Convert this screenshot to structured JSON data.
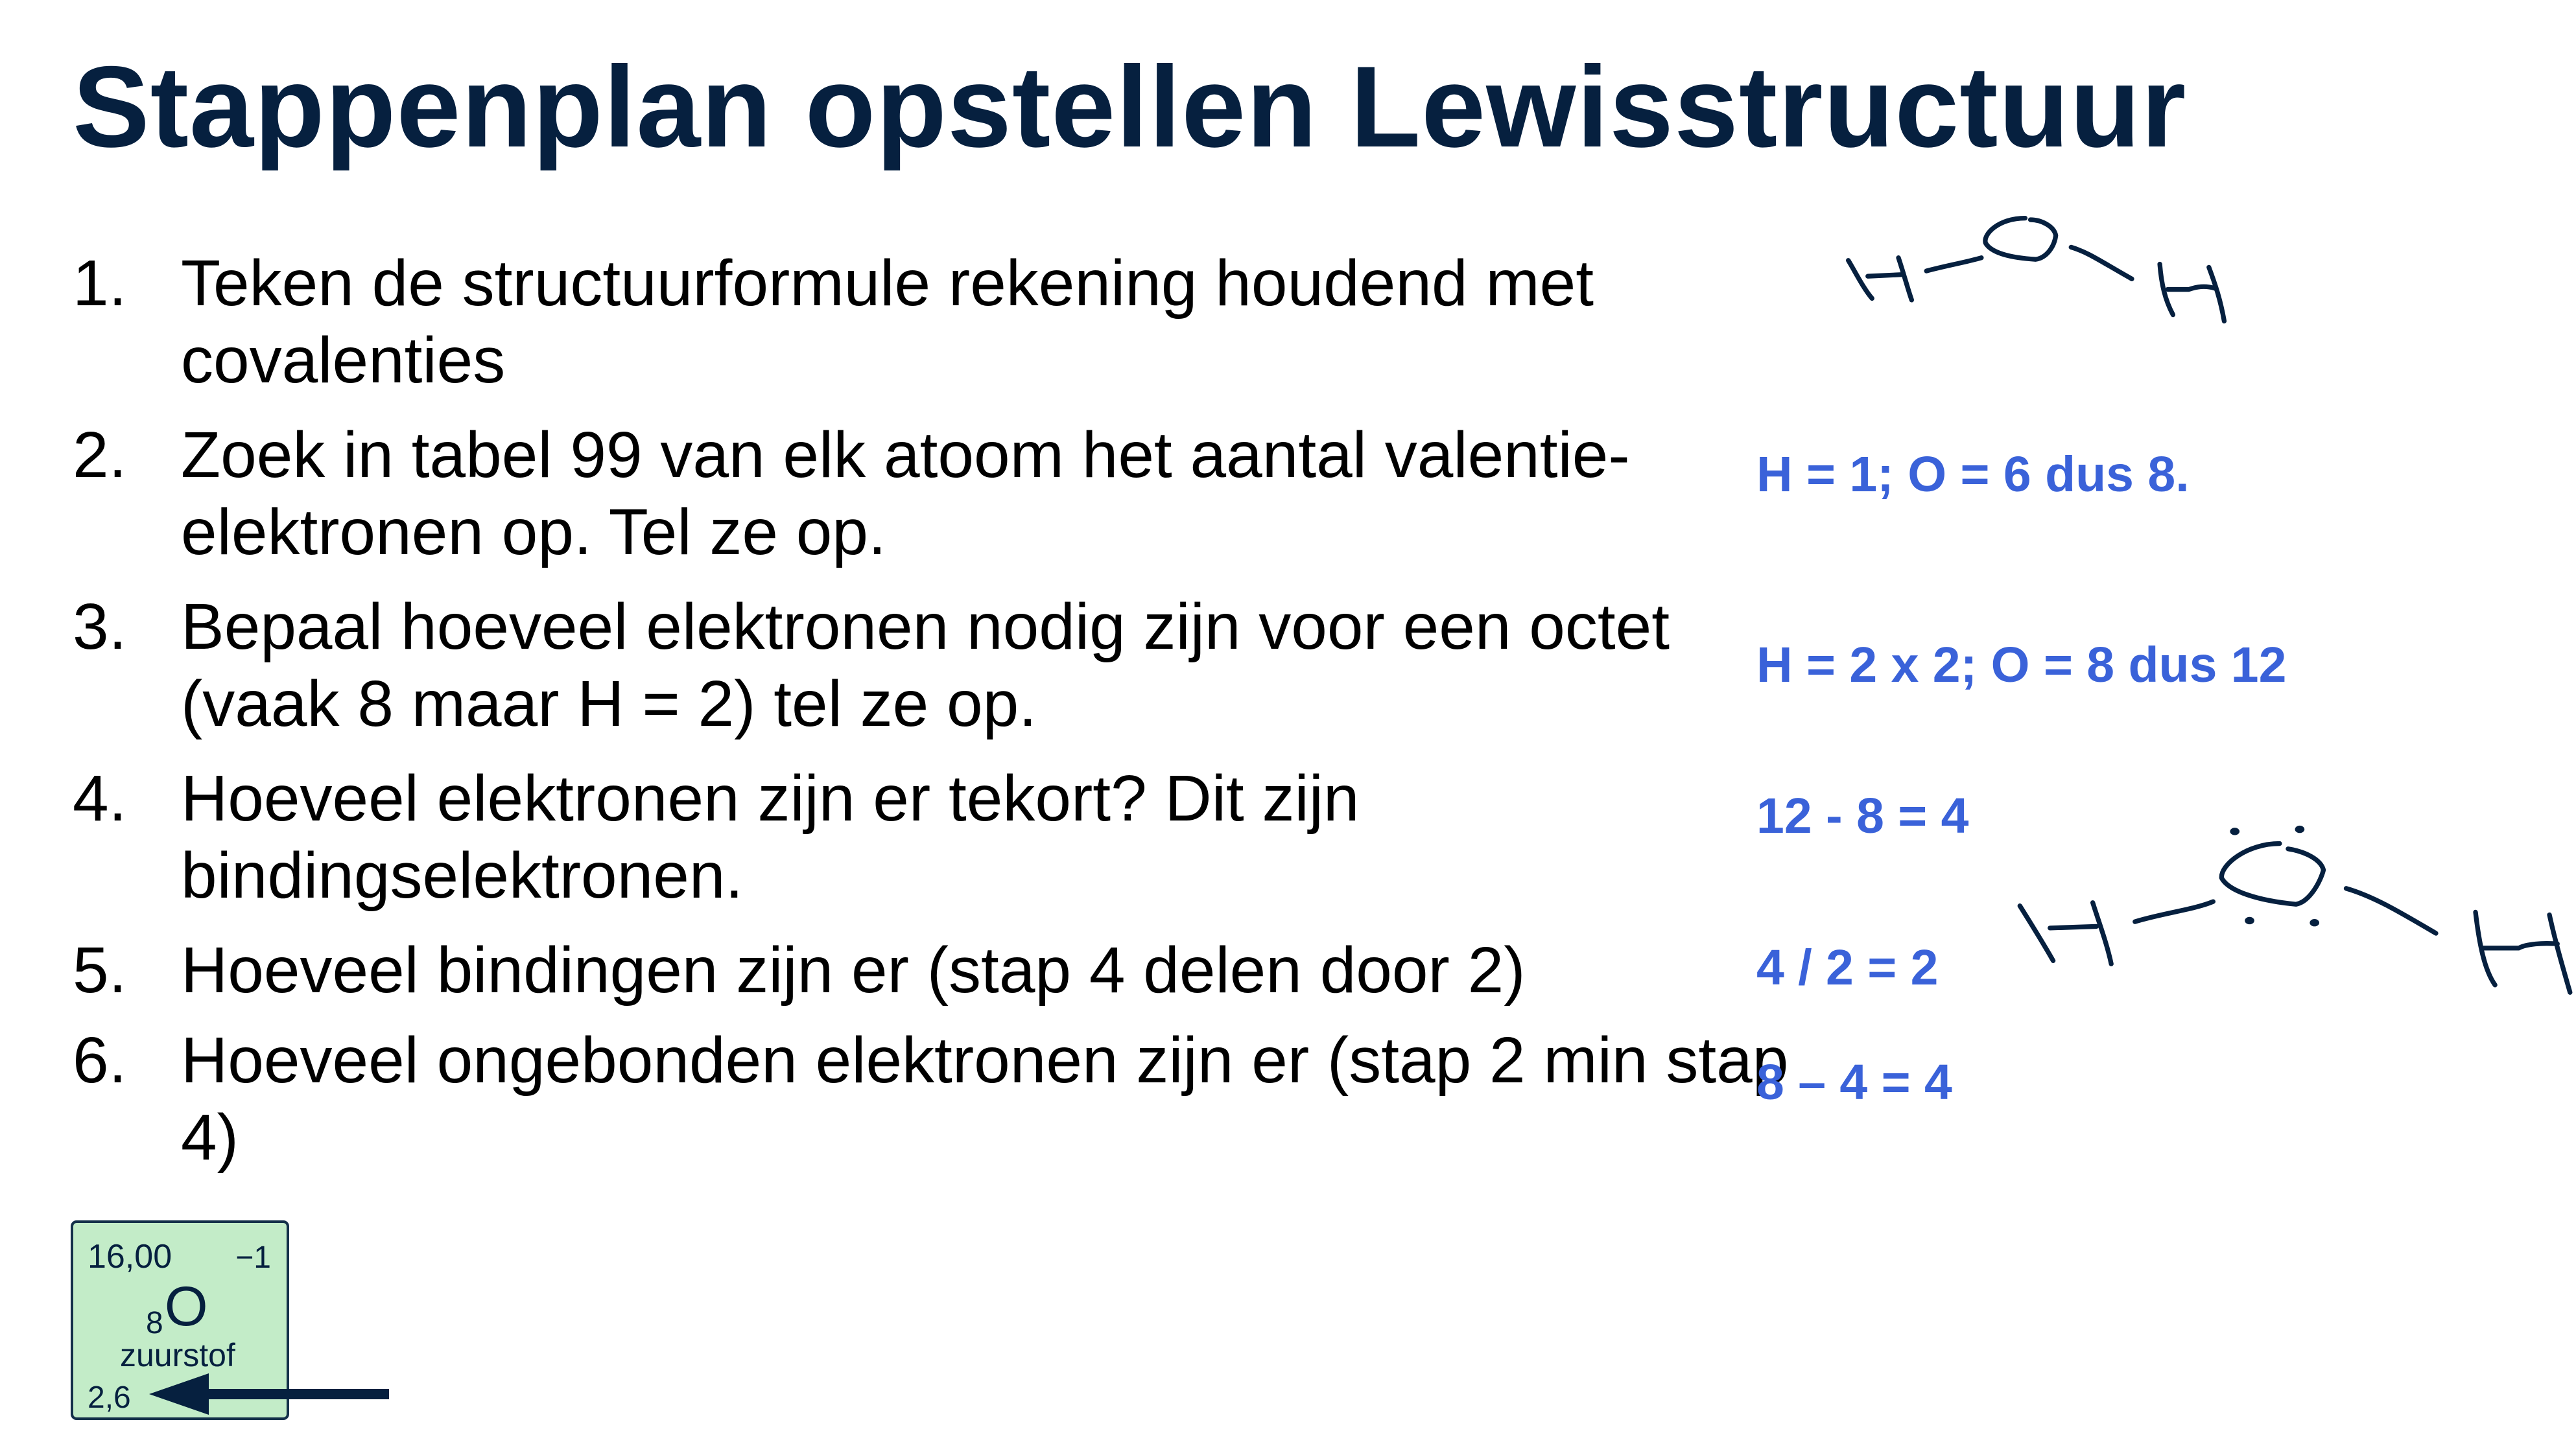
{
  "title": "Stappenplan opstellen Lewisstructuur",
  "steps": [
    {
      "number": "1.",
      "text": "Teken de structuurformule rekening houdend met covalenties"
    },
    {
      "number": "2.",
      "text": "Zoek in tabel 99 van elk atoom het aantal valentie-elektronen op. Tel ze op."
    },
    {
      "number": "3.",
      "text": "Bepaal hoeveel elektronen nodig zijn voor een octet (vaak 8 maar H = 2) tel ze op."
    },
    {
      "number": "4.",
      "text": "Hoeveel elektronen zijn er tekort? Dit zijn bindingselektronen."
    },
    {
      "number": "5.",
      "text": "Hoeveel bindingen zijn er (stap 4 delen door 2)"
    },
    {
      "number": "6.",
      "text": "Hoeveel ongebonden elektronen zijn er (stap 2 min stap 4)"
    }
  ],
  "annotations": {
    "step2": "H = 1; O = 6 dus 8.",
    "step3": "H = 2 x 2;  O = 8 dus 12",
    "step4": "12 - 8 = 4",
    "step5": "4 / 2 = 2",
    "step6": "8 – 4 = 4"
  },
  "element_card": {
    "atomic_mass": "16,00",
    "oxidation": "−1",
    "atomic_number": "8",
    "symbol": "O",
    "name": "zuurstof",
    "electron_config": "2,6"
  },
  "drawings": {
    "structural_formula": "H–O–H (handwritten)",
    "lewis_structure": "H–Ö–H with lone pairs (handwritten)"
  },
  "colors": {
    "title": "#06203f",
    "annotation": "#3a62d9",
    "element_card_bg": "#c3ecc8",
    "ink": "#06203f"
  }
}
